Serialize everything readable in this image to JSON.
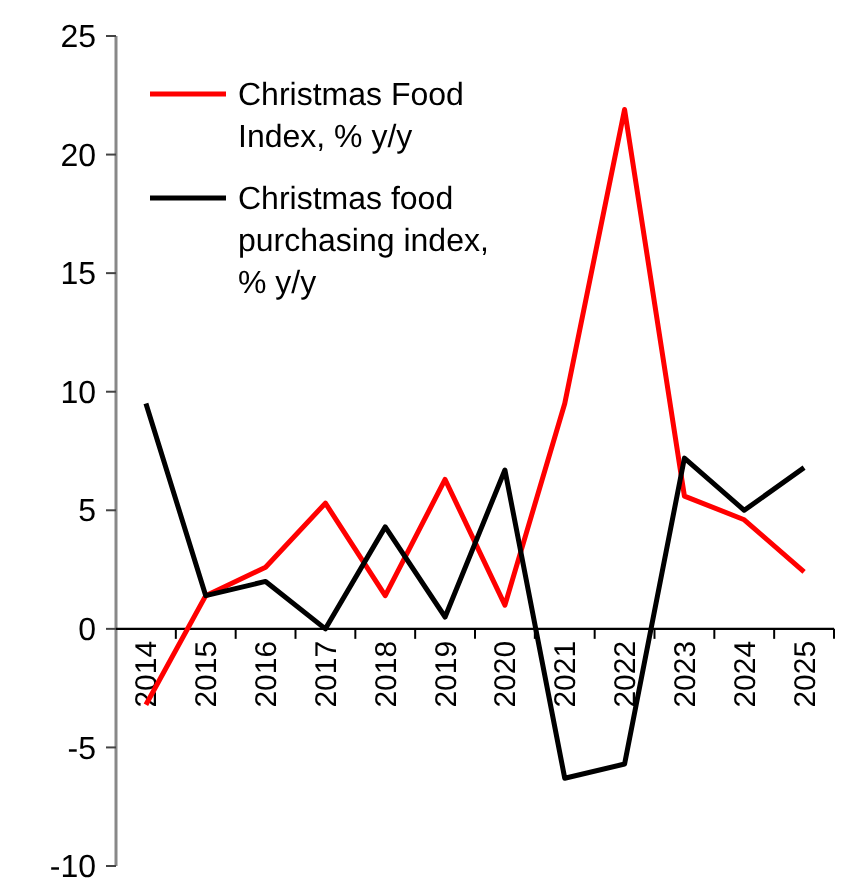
{
  "chart_data": {
    "type": "line",
    "categories": [
      "2014",
      "2015",
      "2016",
      "2017",
      "2018",
      "2019",
      "2020",
      "2021",
      "2022",
      "2023",
      "2024",
      "2025"
    ],
    "series": [
      {
        "name": "Christmas Food Index, % y/y",
        "color": "#ff0000",
        "values": [
          -3.2,
          1.4,
          2.6,
          5.3,
          1.4,
          6.3,
          1.0,
          9.5,
          21.9,
          5.6,
          4.6,
          2.4
        ]
      },
      {
        "name": "Christmas food purchasing index, % y/y",
        "color": "#000000",
        "values": [
          9.5,
          1.4,
          2.0,
          0,
          4.3,
          0.5,
          6.7,
          -6.3,
          -5.7,
          7.2,
          5.0,
          6.8
        ]
      }
    ],
    "ylim": [
      -10,
      25
    ],
    "yticks": [
      -10,
      -5,
      0,
      5,
      10,
      15,
      20,
      25
    ],
    "grid": false,
    "legend": "top left",
    "marker": "none",
    "line_style": "solid"
  }
}
